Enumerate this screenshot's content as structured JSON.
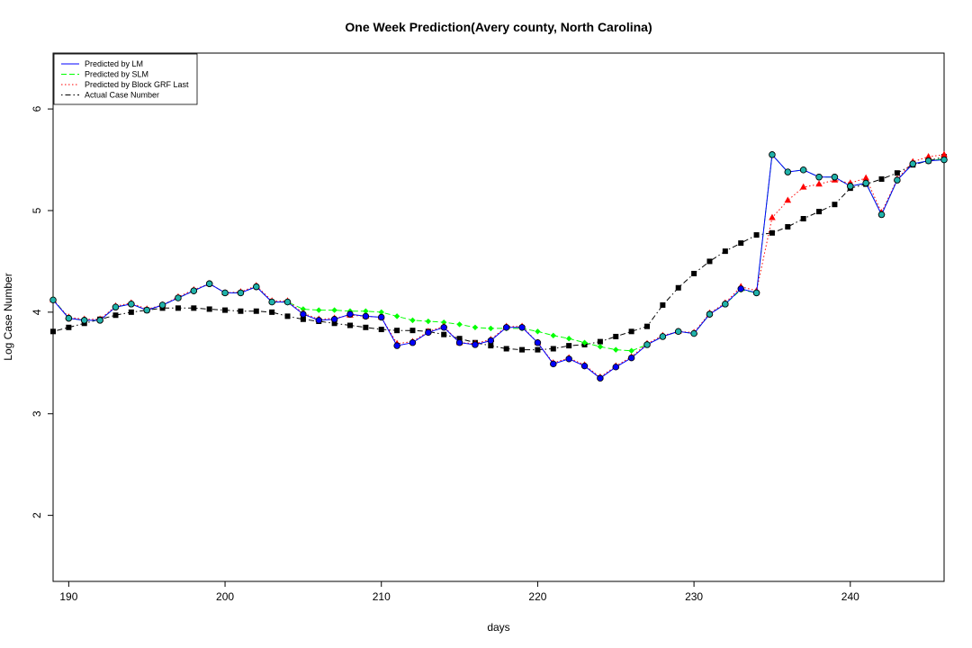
{
  "chart_data": {
    "type": "line",
    "title": "One Week Prediction(Avery county, North Carolina)",
    "xlabel": "days",
    "ylabel": "Log Case Number",
    "xlim": [
      189,
      246
    ],
    "ylim": [
      1.35,
      6.55
    ],
    "x_ticks": [
      190,
      200,
      210,
      220,
      230,
      240
    ],
    "y_ticks": [
      2,
      3,
      4,
      5,
      6
    ],
    "legend_position": "top-left",
    "grid": false,
    "x": [
      189,
      190,
      191,
      192,
      193,
      194,
      195,
      196,
      197,
      198,
      199,
      200,
      201,
      202,
      203,
      204,
      205,
      206,
      207,
      208,
      209,
      210,
      211,
      212,
      213,
      214,
      215,
      216,
      217,
      218,
      219,
      220,
      221,
      222,
      223,
      224,
      225,
      226,
      227,
      228,
      229,
      230,
      231,
      232,
      233,
      234,
      235,
      236,
      237,
      238,
      239,
      240,
      241,
      242,
      243,
      244,
      245,
      246
    ],
    "series": [
      {
        "name": "Predicted by LM",
        "color": "#0000ff",
        "line": "solid",
        "marker": "circle",
        "marker_fill": "#0000ff",
        "values": [
          4.12,
          3.94,
          3.92,
          3.92,
          4.05,
          4.08,
          4.02,
          4.07,
          4.14,
          4.21,
          4.28,
          4.19,
          4.19,
          4.25,
          4.1,
          4.1,
          3.98,
          3.92,
          3.93,
          3.98,
          3.96,
          3.95,
          3.67,
          3.7,
          3.8,
          3.85,
          3.7,
          3.68,
          3.72,
          3.85,
          3.85,
          3.7,
          3.49,
          3.54,
          3.47,
          3.35,
          3.46,
          3.55,
          3.68,
          3.76,
          3.81,
          3.79,
          3.98,
          4.08,
          4.23,
          4.19,
          5.55,
          5.38,
          5.4,
          5.33,
          5.33,
          5.24,
          5.27,
          4.96,
          5.3,
          5.46,
          5.49,
          5.5
        ]
      },
      {
        "name": "Predicted by SLM",
        "color": "#00ff00",
        "line": "dashed",
        "marker": "diamond",
        "marker_fill": "#00ff00",
        "values": [
          4.13,
          3.94,
          3.92,
          3.92,
          4.05,
          4.08,
          4.02,
          4.07,
          4.14,
          4.21,
          4.28,
          4.19,
          4.19,
          4.25,
          4.1,
          4.1,
          4.03,
          4.02,
          4.02,
          4.01,
          4.01,
          4.0,
          3.96,
          3.92,
          3.91,
          3.9,
          3.88,
          3.85,
          3.84,
          3.84,
          3.84,
          3.81,
          3.77,
          3.74,
          3.7,
          3.66,
          3.63,
          3.62,
          3.68,
          3.76,
          3.81,
          3.79,
          3.98,
          4.08,
          4.22,
          4.19,
          5.55,
          5.38,
          5.4,
          5.33,
          5.33,
          5.24,
          5.27,
          4.96,
          5.3,
          5.46,
          5.49,
          5.51
        ]
      },
      {
        "name": "Predicted by Block GRF Last",
        "color": "#ff0000",
        "line": "dotted",
        "marker": "triangle",
        "marker_fill": "#ff0000",
        "values": [
          4.12,
          3.95,
          3.93,
          3.93,
          4.06,
          4.09,
          4.03,
          4.07,
          4.15,
          4.22,
          4.28,
          4.19,
          4.2,
          4.26,
          4.11,
          4.11,
          3.99,
          3.93,
          3.94,
          3.97,
          3.96,
          3.95,
          3.69,
          3.71,
          3.81,
          3.86,
          3.7,
          3.69,
          3.73,
          3.86,
          3.86,
          3.7,
          3.5,
          3.55,
          3.48,
          3.36,
          3.47,
          3.56,
          3.69,
          3.77,
          3.81,
          3.8,
          3.99,
          4.09,
          4.25,
          4.21,
          4.93,
          5.1,
          5.23,
          5.26,
          5.3,
          5.27,
          5.32,
          4.98,
          5.31,
          5.48,
          5.53,
          5.55
        ]
      },
      {
        "name": "Actual Case Number",
        "color": "#000000",
        "line": "dotdash",
        "marker": "square",
        "marker_fill": "#000000",
        "values": [
          3.81,
          3.85,
          3.89,
          3.93,
          3.97,
          4.0,
          4.02,
          4.04,
          4.04,
          4.04,
          4.03,
          4.02,
          4.01,
          4.01,
          4.0,
          3.96,
          3.93,
          3.91,
          3.89,
          3.87,
          3.85,
          3.83,
          3.82,
          3.82,
          3.81,
          3.78,
          3.74,
          3.7,
          3.67,
          3.64,
          3.63,
          3.63,
          3.64,
          3.67,
          3.68,
          3.71,
          3.76,
          3.81,
          3.86,
          4.07,
          4.24,
          4.38,
          4.5,
          4.6,
          4.68,
          4.76,
          4.78,
          4.84,
          4.92,
          4.99,
          5.06,
          5.22,
          5.26,
          5.31,
          5.37,
          5.45,
          5.49,
          5.53
        ]
      }
    ]
  }
}
